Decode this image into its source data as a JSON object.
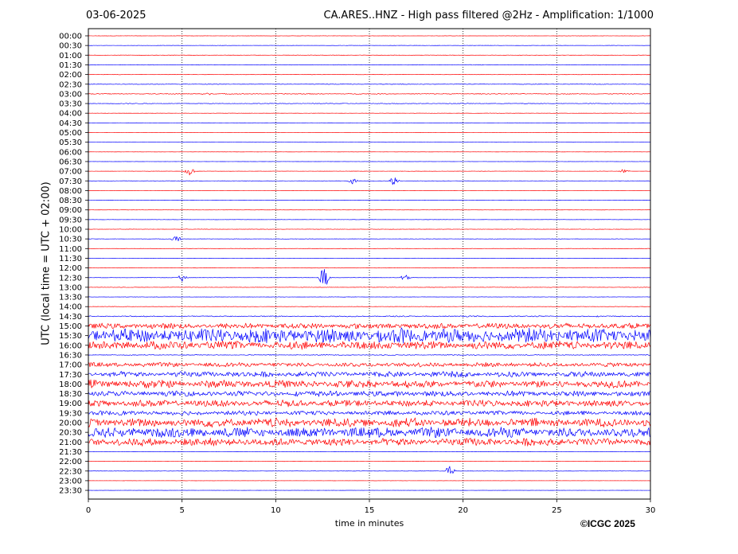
{
  "header": {
    "date": "03-06-2025",
    "title": "CA.ARES..HNZ - High pass filtered @2Hz - Amplification: 1/1000"
  },
  "footer": {
    "copyright": "©ICGC 2025"
  },
  "chart_data": {
    "type": "line",
    "title": "CA.ARES..HNZ - High pass filtered @2Hz - Amplification: 1/1000",
    "xlabel": "time in minutes",
    "ylabel": "UTC (local time = UTC + 02:00)",
    "xlim": [
      0,
      30
    ],
    "xticks": [
      0,
      5,
      10,
      15,
      20,
      25,
      30
    ],
    "grid": "vertical dotted lines at 5-minute ticks",
    "trace_colors": [
      "#ff0000",
      "#0000ff"
    ],
    "rows": [
      {
        "label": "00:00",
        "activity": 0.05
      },
      {
        "label": "00:30",
        "activity": 0.05
      },
      {
        "label": "01:00",
        "activity": 0.08
      },
      {
        "label": "01:30",
        "activity": 0.1
      },
      {
        "label": "02:00",
        "activity": 0.08
      },
      {
        "label": "02:30",
        "activity": 0.12
      },
      {
        "label": "03:00",
        "activity": 0.15,
        "events": [
          {
            "t": 6.3,
            "amp": 2
          }
        ]
      },
      {
        "label": "03:30",
        "activity": 0.12
      },
      {
        "label": "04:00",
        "activity": 0.05
      },
      {
        "label": "04:30",
        "activity": 0.03
      },
      {
        "label": "05:00",
        "activity": 0.03
      },
      {
        "label": "05:30",
        "activity": 0.03
      },
      {
        "label": "06:00",
        "activity": 0.03
      },
      {
        "label": "06:30",
        "activity": 0.03
      },
      {
        "label": "07:00",
        "activity": 0.05,
        "events": [
          {
            "t": 5.4,
            "amp": 5
          },
          {
            "t": 28.6,
            "amp": 3
          }
        ]
      },
      {
        "label": "07:30",
        "activity": 0.05,
        "events": [
          {
            "t": 14.1,
            "amp": 4
          },
          {
            "t": 16.3,
            "amp": 6
          }
        ]
      },
      {
        "label": "08:00",
        "activity": 0.03
      },
      {
        "label": "08:30",
        "activity": 0.03
      },
      {
        "label": "09:00",
        "activity": 0.05
      },
      {
        "label": "09:30",
        "activity": 0.05
      },
      {
        "label": "10:00",
        "activity": 0.07
      },
      {
        "label": "10:30",
        "activity": 0.06,
        "events": [
          {
            "t": 4.7,
            "amp": 4
          }
        ]
      },
      {
        "label": "11:00",
        "activity": 0.07
      },
      {
        "label": "11:30",
        "activity": 0.05
      },
      {
        "label": "12:00",
        "activity": 0.05
      },
      {
        "label": "12:30",
        "activity": 0.06,
        "events": [
          {
            "t": 5.0,
            "amp": 8
          },
          {
            "t": 12.6,
            "amp": 16
          },
          {
            "t": 16.9,
            "amp": 4
          }
        ]
      },
      {
        "label": "13:00",
        "activity": 0.08
      },
      {
        "label": "13:30",
        "activity": 0.06
      },
      {
        "label": "14:00",
        "activity": 0.07
      },
      {
        "label": "14:30",
        "activity": 0.2
      },
      {
        "label": "15:00",
        "activity": 1.0
      },
      {
        "label": "15:30",
        "activity": 2.6
      },
      {
        "label": "16:00",
        "activity": 1.5
      },
      {
        "label": "16:30",
        "activity": 0.15
      },
      {
        "label": "17:00",
        "activity": 0.8
      },
      {
        "label": "17:30",
        "activity": 1.0
      },
      {
        "label": "18:00",
        "activity": 1.4
      },
      {
        "label": "18:30",
        "activity": 1.0
      },
      {
        "label": "19:00",
        "activity": 1.2
      },
      {
        "label": "19:30",
        "activity": 0.8
      },
      {
        "label": "20:00",
        "activity": 1.6
      },
      {
        "label": "20:30",
        "activity": 1.8
      },
      {
        "label": "21:00",
        "activity": 1.4
      },
      {
        "label": "21:30",
        "activity": 0.05
      },
      {
        "label": "22:00",
        "activity": 0.05
      },
      {
        "label": "22:30",
        "activity": 0.06,
        "events": [
          {
            "t": 19.3,
            "amp": 7
          }
        ]
      },
      {
        "label": "23:00",
        "activity": 0.03
      },
      {
        "label": "23:30",
        "activity": 0.03
      }
    ]
  }
}
